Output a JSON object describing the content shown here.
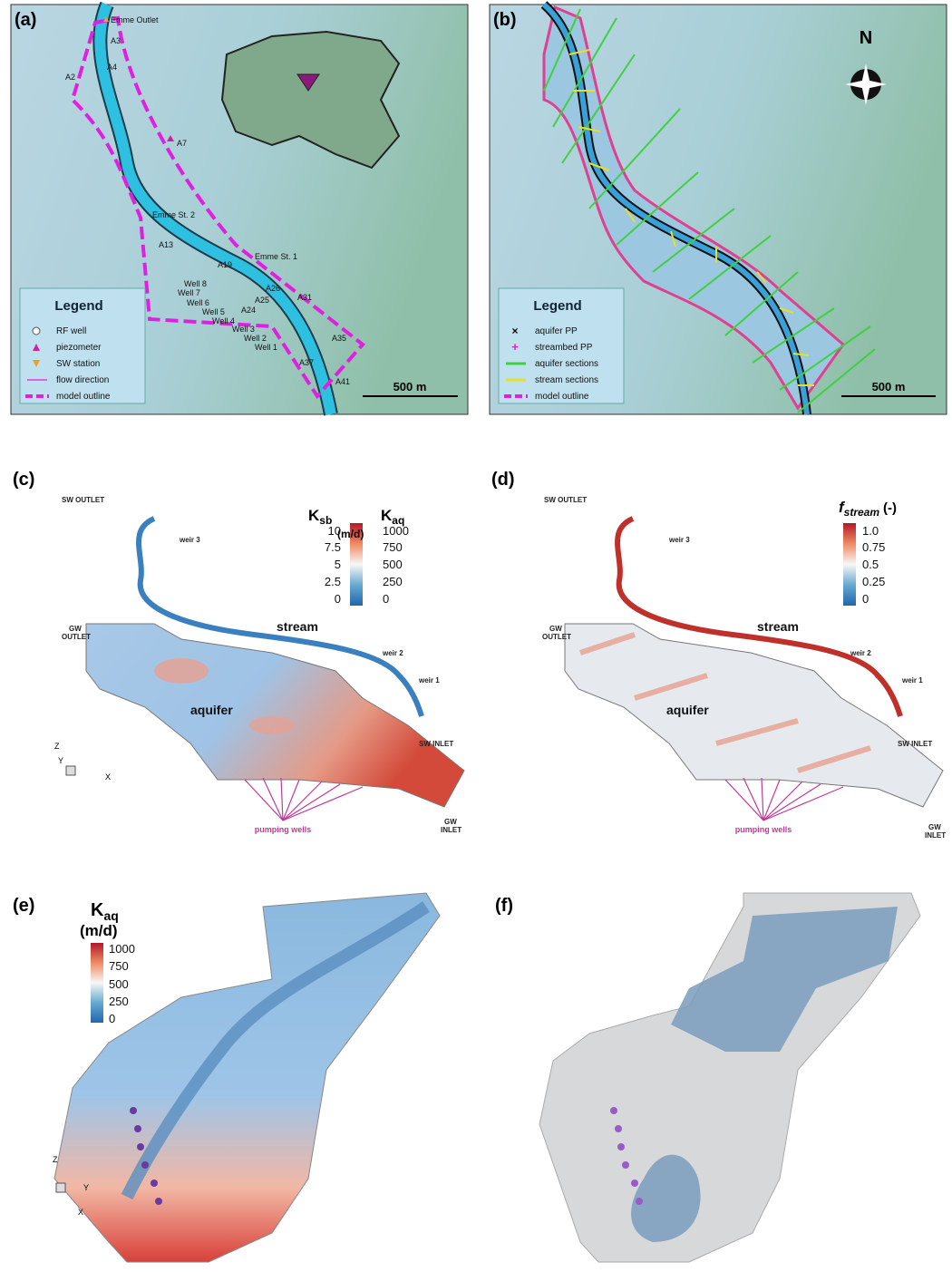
{
  "panel_a": {
    "label": "(a)",
    "sites": [
      "Emme Outlet",
      "A3",
      "A2",
      "A4",
      "A7",
      "Emme St. 2",
      "A13",
      "A19",
      "Emme St. 1",
      "A26",
      "A31",
      "Well 8",
      "Well 7",
      "Well 6",
      "Well 5",
      "Well 4",
      "A25",
      "A24",
      "Well 3",
      "Well 2",
      "Well 1",
      "A35",
      "A37",
      "A41"
    ],
    "legend": {
      "title": "Legend",
      "items": [
        "RF well",
        "piezometer",
        "SW station",
        "flow direction",
        "model outline"
      ]
    },
    "scale_bar": "500 m"
  },
  "panel_b": {
    "label": "(b)",
    "north": "N",
    "legend": {
      "title": "Legend",
      "items": [
        "aquifer PP",
        "streambed PP",
        "aquifer sections",
        "stream sections",
        "model outline"
      ]
    },
    "scale_bar": "500 m"
  },
  "panel_c": {
    "label": "(c)",
    "colorbar": {
      "title_left": {
        "symbol": "K",
        "subscript": "sb"
      },
      "title_right": {
        "symbol": "K",
        "subscript": "aq"
      },
      "unit": "(m/d)",
      "ticks_left": [
        "10",
        "7.5",
        "5",
        "2.5",
        "0"
      ],
      "ticks_right": [
        "1000",
        "750",
        "500",
        "250",
        "0"
      ]
    },
    "annotations": [
      "SW OUTLET",
      "weir 3",
      "stream",
      [
        "GW",
        "OUTLET"
      ],
      "weir 2",
      "weir 1",
      "aquifer",
      "SW INLET",
      "pumping wells",
      [
        "GW",
        "INLET"
      ]
    ],
    "axes": [
      "Z",
      "Y",
      "X"
    ]
  },
  "panel_d": {
    "label": "(d)",
    "colorbar": {
      "symbol": "f",
      "subscript": "stream",
      "unit": "(-)",
      "ticks": [
        "1.0",
        "0.75",
        "0.5",
        "0.25",
        "0"
      ]
    },
    "annotations": [
      "SW OUTLET",
      "weir 3",
      "stream",
      [
        "GW",
        "OUTLET"
      ],
      "weir 2",
      "weir 1",
      "aquifer",
      "SW INLET",
      "pumping wells",
      [
        "GW",
        "INLET"
      ]
    ]
  },
  "panel_e": {
    "label": "(e)",
    "colorbar": {
      "symbol": "K",
      "subscript": "aq",
      "unit": "(m/d)",
      "ticks": [
        "1000",
        "750",
        "500",
        "250",
        "0"
      ]
    },
    "axes": [
      "Z",
      "Y",
      "X"
    ]
  },
  "panel_f": {
    "label": "(f)"
  }
}
